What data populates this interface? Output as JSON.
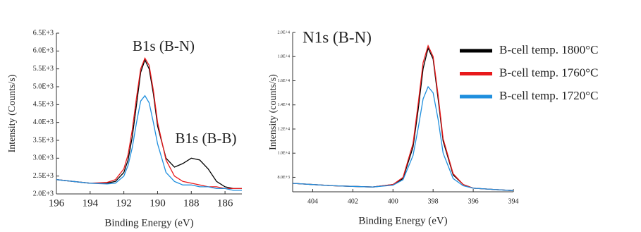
{
  "chart_data": [
    {
      "type": "line",
      "annotations": [
        "B1s (B-N)",
        "B1s (B-B)"
      ],
      "xlabel": "Binding Energy (eV)",
      "ylabel": "Intensity (Counts/s)",
      "xlim": [
        196,
        185
      ],
      "xticks": [
        196,
        194,
        192,
        190,
        188,
        186
      ],
      "ylim": [
        2000,
        6500
      ],
      "yticks": [
        {
          "value": 2000,
          "label": "2.0E+3"
        },
        {
          "value": 2500,
          "label": "2.5E+3"
        },
        {
          "value": 3000,
          "label": "3.0E+3"
        },
        {
          "value": 3500,
          "label": "3.5E+3"
        },
        {
          "value": 4000,
          "label": "4.0E+3"
        },
        {
          "value": 4500,
          "label": "4.5E+3"
        },
        {
          "value": 5000,
          "label": "5.0E+3"
        },
        {
          "value": 5500,
          "label": "5.5E+3"
        },
        {
          "value": 6000,
          "label": "6.0E+3"
        },
        {
          "value": 6500,
          "label": "6.5E+3"
        }
      ],
      "x": [
        196,
        195,
        194,
        193,
        192.5,
        192,
        191.75,
        191.5,
        191.25,
        191,
        190.75,
        190.5,
        190.25,
        190,
        189.5,
        189,
        188.5,
        188,
        187.5,
        187,
        186.5,
        186,
        185.5,
        185
      ],
      "series": [
        {
          "color": "#000000",
          "values": [
            2400,
            2350,
            2300,
            2300,
            2350,
            2600,
            2950,
            3600,
            4500,
            5400,
            5750,
            5500,
            4800,
            3900,
            3000,
            2750,
            2850,
            3000,
            2950,
            2700,
            2350,
            2200,
            2150,
            2150
          ]
        },
        {
          "color": "#e8191b",
          "values": [
            2400,
            2350,
            2300,
            2320,
            2400,
            2700,
            3100,
            3800,
            4700,
            5500,
            5800,
            5600,
            4900,
            4000,
            2950,
            2500,
            2350,
            2300,
            2250,
            2200,
            2200,
            2150,
            2150,
            2150
          ]
        },
        {
          "color": "#1f8fde",
          "values": [
            2400,
            2350,
            2300,
            2280,
            2300,
            2500,
            2800,
            3300,
            4000,
            4600,
            4750,
            4550,
            4000,
            3400,
            2600,
            2350,
            2250,
            2250,
            2200,
            2200,
            2150,
            2150,
            2100,
            2100
          ]
        }
      ]
    },
    {
      "type": "line",
      "annotations": [
        "N1s (B-N)"
      ],
      "xlabel": "Binding Energy (eV)",
      "ylabel": "Intensity (counts/s)",
      "xlim": [
        405,
        394
      ],
      "xticks": [
        404,
        402,
        400,
        398,
        396,
        394
      ],
      "ylim": [
        6800,
        20000
      ],
      "yticks": [
        {
          "value": 8000,
          "label": "8.0E+3"
        },
        {
          "value": 10000,
          "label": "1.0E+4"
        },
        {
          "value": 12000,
          "label": "1.2E+4"
        },
        {
          "value": 14000,
          "label": "1.4E+4"
        },
        {
          "value": 16000,
          "label": "1.6E+4"
        },
        {
          "value": 18000,
          "label": "1.8E+4"
        },
        {
          "value": 20000,
          "label": "2.0E+4"
        }
      ],
      "x": [
        405,
        404,
        403,
        402,
        401,
        400,
        399.5,
        399,
        398.75,
        398.5,
        398.25,
        398,
        397.75,
        397.5,
        397,
        396.5,
        396,
        395,
        394
      ],
      "legend": "upper right",
      "series": [
        {
          "name": "B-cell temp. 1800°C",
          "color": "#000000",
          "values": [
            7500,
            7400,
            7300,
            7250,
            7200,
            7400,
            7900,
            10500,
            13500,
            17000,
            18700,
            17800,
            14500,
            11000,
            8200,
            7400,
            7100,
            7000,
            6900
          ]
        },
        {
          "name": "B-cell temp. 1760°C",
          "color": "#e8191b",
          "values": [
            7500,
            7400,
            7300,
            7250,
            7200,
            7400,
            8000,
            10800,
            14000,
            17500,
            18900,
            18000,
            14800,
            11200,
            8300,
            7400,
            7100,
            7000,
            6900
          ]
        },
        {
          "name": "B-cell temp. 1720°C",
          "color": "#1f8fde",
          "values": [
            7500,
            7400,
            7300,
            7250,
            7200,
            7350,
            7800,
            9800,
            12000,
            14500,
            15500,
            15000,
            12800,
            10000,
            7900,
            7300,
            7100,
            7000,
            6900
          ]
        }
      ]
    }
  ]
}
